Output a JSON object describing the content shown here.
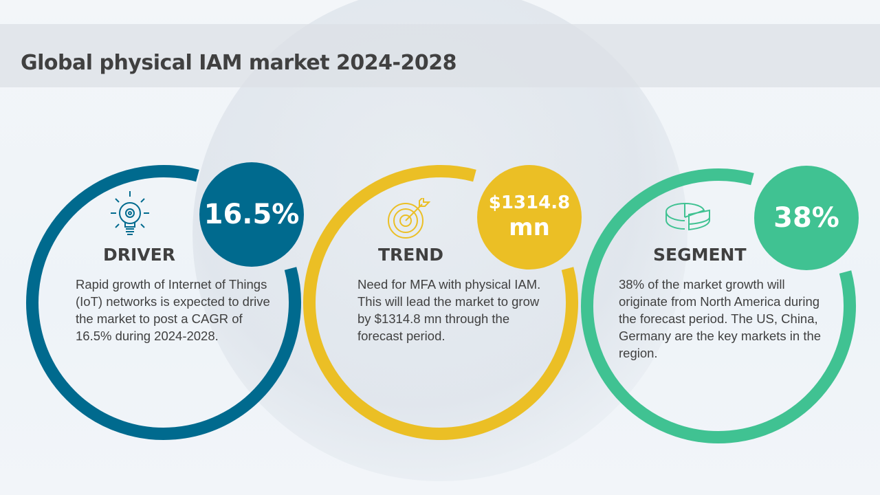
{
  "title": "Global physical IAM market 2024-2028",
  "colors": {
    "driver": "#006a8e",
    "trend": "#ebbf25",
    "segment": "#40c292"
  },
  "cards": [
    {
      "heading": "DRIVER",
      "value": "16.5%",
      "icon": "lightbulb-gear-icon",
      "text": "Rapid growth of Internet of Things (IoT) networks is expected to drive the market to post a CAGR of 16.5% during 2024-2028."
    },
    {
      "heading": "TREND",
      "value_line1": "$1314.8",
      "value_line2": "mn",
      "icon": "target-arrow-icon",
      "text": "Need for MFA with physical IAM. This will lead the market to grow by $1314.8 mn through the forecast period."
    },
    {
      "heading": "SEGMENT",
      "value": "38%",
      "icon": "pie-chart-icon",
      "text": "38% of the market growth will originate from North America during the forecast period. The US, China, Germany are the key markets in the region."
    }
  ]
}
